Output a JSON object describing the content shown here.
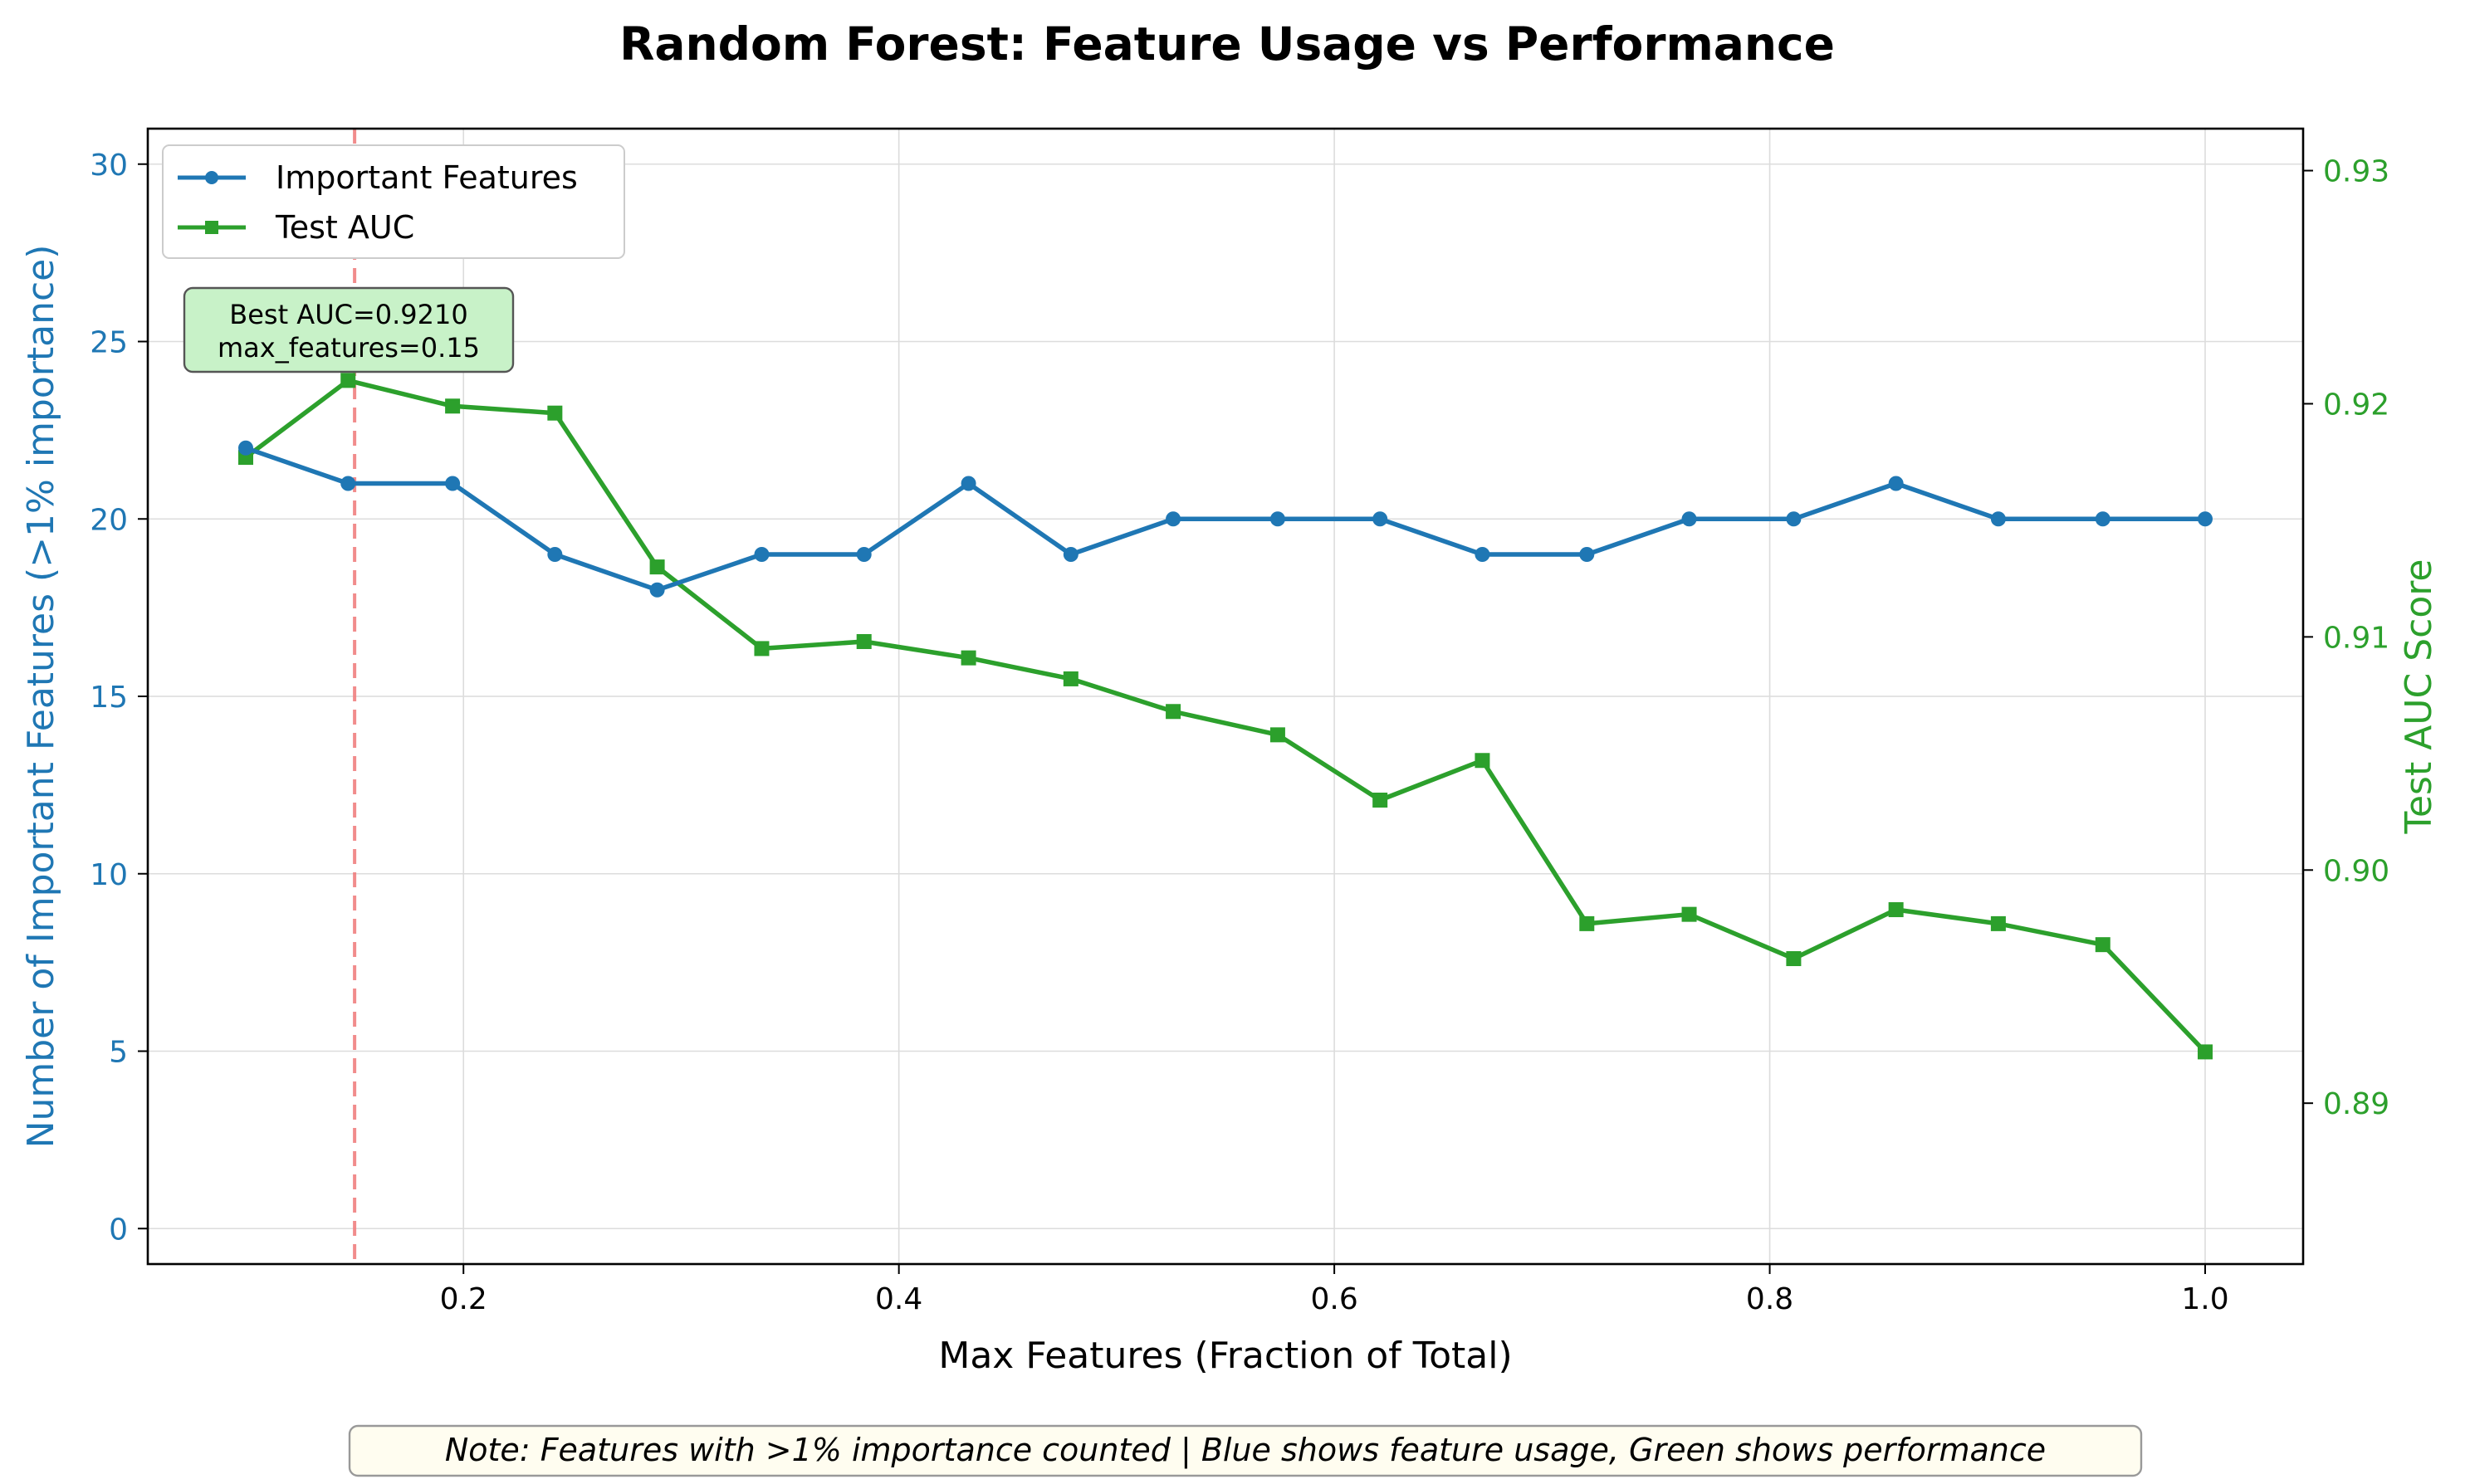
{
  "chart_data": {
    "type": "line",
    "title": "Random Forest: Feature Usage vs Performance",
    "xlabel": "Max Features (Fraction of Total)",
    "ylabel": "Number of Important Features (>1% importance)",
    "y2label": "Test AUC Score",
    "xlim": [
      0.055,
      1.045
    ],
    "ylim": [
      -1,
      31
    ],
    "y2lim": [
      0.8831,
      0.9318
    ],
    "x_ticks": [
      "0.2",
      "0.4",
      "0.6",
      "0.8",
      "1.0"
    ],
    "x_tick_values": [
      0.2,
      0.4,
      0.6,
      0.8,
      1.0
    ],
    "y_ticks": [
      "0",
      "5",
      "10",
      "15",
      "20",
      "25",
      "30"
    ],
    "y_tick_values": [
      0,
      5,
      10,
      15,
      20,
      25,
      30
    ],
    "y2_ticks": [
      "0.89",
      "0.90",
      "0.91",
      "0.92",
      "0.93"
    ],
    "y2_tick_values": [
      0.89,
      0.9,
      0.91,
      0.92,
      0.93
    ],
    "grid": true,
    "legend_position": "top-left",
    "x": [
      0.1,
      0.147,
      0.195,
      0.242,
      0.289,
      0.337,
      0.384,
      0.432,
      0.479,
      0.526,
      0.574,
      0.621,
      0.668,
      0.716,
      0.763,
      0.811,
      0.858,
      0.905,
      0.953,
      1.0
    ],
    "series": [
      {
        "name": "Important Features",
        "axis": "left",
        "color": "#1f77b4",
        "marker": "circle",
        "values": [
          22,
          21,
          21,
          19,
          18,
          19,
          19,
          21,
          19,
          20,
          20,
          20,
          19,
          19,
          20,
          20,
          21,
          20,
          20,
          20
        ]
      },
      {
        "name": "Test AUC",
        "axis": "right",
        "color": "#2ca02c",
        "marker": "square",
        "values": [
          0.9177,
          0.921,
          0.9199,
          0.9196,
          0.913,
          0.9095,
          0.9098,
          0.9091,
          0.9082,
          0.9068,
          0.9058,
          0.903,
          0.9047,
          0.8977,
          0.8981,
          0.8962,
          0.8983,
          0.8977,
          0.8968,
          0.8922
        ]
      }
    ],
    "reference_line": {
      "x": 0.15,
      "color": "#f08080"
    },
    "annotation": {
      "lines": [
        "Best AUC=0.9210",
        "max_features=0.15"
      ]
    },
    "note": "Note: Features with >1% importance counted | Blue shows feature usage, Green shows performance"
  }
}
